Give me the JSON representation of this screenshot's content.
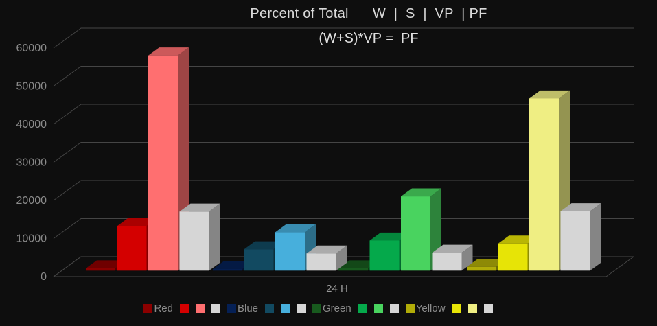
{
  "chart_data": {
    "type": "bar",
    "projection": "3d-column",
    "title": "Percent of Total      W  |  S  |  VP  | PF",
    "subtitle": "(W+S)*VP =  PF",
    "xlabel": "24 H",
    "categories": [
      "24 H"
    ],
    "series_names": [
      "W",
      "S",
      "VP",
      "PF"
    ],
    "ylim": [
      0,
      60000
    ],
    "ytick_step": 10000,
    "yticks": [
      "0",
      "10000",
      "20000",
      "30000",
      "40000",
      "50000",
      "60000"
    ],
    "grid": true,
    "legend_position": "bottom",
    "groups": [
      {
        "name": "Red",
        "legend_label": "Red",
        "colors": [
          "#8B0000",
          "#D40000",
          "#FF6F70",
          "#D6D6D6"
        ],
        "values": [
          600,
          11700,
          56500,
          15500
        ]
      },
      {
        "name": "Blue",
        "legend_label": "Blue",
        "colors": [
          "#052055",
          "#124A61",
          "#47AFDC",
          "#D6D6D6"
        ],
        "values": [
          400,
          5600,
          10100,
          4500
        ]
      },
      {
        "name": "Green",
        "legend_label": "Green",
        "colors": [
          "#185A1E",
          "#05A94B",
          "#49D35F",
          "#D6D6D6"
        ],
        "values": [
          600,
          7900,
          19500,
          4700
        ]
      },
      {
        "name": "Yellow",
        "legend_label": "Yellow",
        "colors": [
          "#B1AC08",
          "#E7E406",
          "#EFEE83",
          "#D6D6D6"
        ],
        "values": [
          1000,
          7100,
          45200,
          15600
        ]
      }
    ]
  },
  "style": {
    "background": "#0E0E0E",
    "grid_color": "#454545",
    "title_color": "#D9D9D9",
    "axis_label_color": "#8A8A8A",
    "legend_text_color": "#8C8C8C"
  }
}
